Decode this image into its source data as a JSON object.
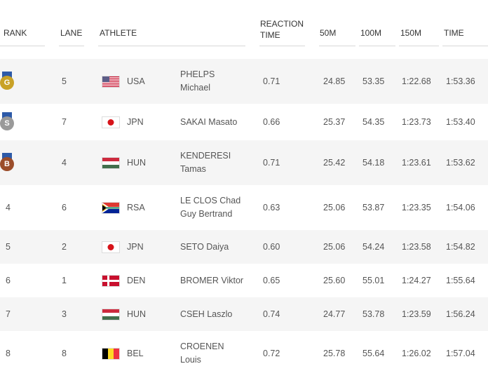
{
  "columns": {
    "rank": "RANK",
    "lane": "LANE",
    "athlete": "ATHLETE",
    "reaction_line1": "REACTION",
    "reaction_line2": "TIME",
    "m50": "50M",
    "m100": "100M",
    "m150": "150M",
    "time": "TIME"
  },
  "rows": [
    {
      "rank": "",
      "medal": "G",
      "medal_color": "#c9a227",
      "lane": "5",
      "flag": "usa",
      "country": "USA",
      "name1": "PHELPS",
      "name2": "Michael",
      "reaction": "0.71",
      "m50": "24.85",
      "m100": "53.35",
      "m150": "1:22.68",
      "time": "1:53.36"
    },
    {
      "rank": "",
      "medal": "S",
      "medal_color": "#9a9a9a",
      "lane": "7",
      "flag": "jpn",
      "country": "JPN",
      "name1": "SAKAI Masato",
      "name2": "",
      "reaction": "0.66",
      "m50": "25.37",
      "m100": "54.35",
      "m150": "1:23.73",
      "time": "1:53.40"
    },
    {
      "rank": "",
      "medal": "B",
      "medal_color": "#9b4d2a",
      "lane": "4",
      "flag": "hun",
      "country": "HUN",
      "name1": "KENDERESI",
      "name2": "Tamas",
      "reaction": "0.71",
      "m50": "25.42",
      "m100": "54.18",
      "m150": "1:23.61",
      "time": "1:53.62"
    },
    {
      "rank": "4",
      "medal": "",
      "medal_color": "",
      "lane": "6",
      "flag": "rsa",
      "country": "RSA",
      "name1": "LE CLOS Chad",
      "name2": "Guy Bertrand",
      "reaction": "0.63",
      "m50": "25.06",
      "m100": "53.87",
      "m150": "1:23.35",
      "time": "1:54.06"
    },
    {
      "rank": "5",
      "medal": "",
      "medal_color": "",
      "lane": "2",
      "flag": "jpn",
      "country": "JPN",
      "name1": "SETO Daiya",
      "name2": "",
      "reaction": "0.60",
      "m50": "25.06",
      "m100": "54.24",
      "m150": "1:23.58",
      "time": "1:54.82"
    },
    {
      "rank": "6",
      "medal": "",
      "medal_color": "",
      "lane": "1",
      "flag": "den",
      "country": "DEN",
      "name1": "BROMER Viktor",
      "name2": "",
      "reaction": "0.65",
      "m50": "25.60",
      "m100": "55.01",
      "m150": "1:24.27",
      "time": "1:55.64"
    },
    {
      "rank": "7",
      "medal": "",
      "medal_color": "",
      "lane": "3",
      "flag": "hun",
      "country": "HUN",
      "name1": "CSEH Laszlo",
      "name2": "",
      "reaction": "0.74",
      "m50": "24.77",
      "m100": "53.78",
      "m150": "1:23.59",
      "time": "1:56.24"
    },
    {
      "rank": "8",
      "medal": "",
      "medal_color": "",
      "lane": "8",
      "flag": "bel",
      "country": "BEL",
      "name1": "CROENEN",
      "name2": "Louis",
      "reaction": "0.72",
      "m50": "25.78",
      "m100": "55.64",
      "m150": "1:26.02",
      "time": "1:57.04"
    }
  ]
}
